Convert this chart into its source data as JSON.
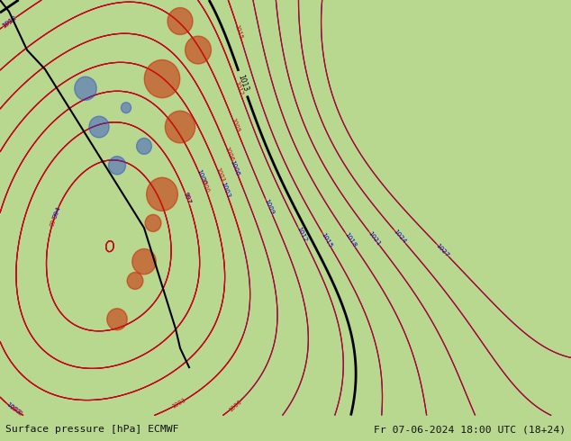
{
  "title_left": "Surface pressure [hPa] ECMWF",
  "title_right": "Fr 07-06-2024 18:00 UTC (18+24)",
  "bg_color": "#b8d890",
  "fig_width": 6.34,
  "fig_height": 4.9,
  "bottom_bar_color": "#d8d8d8",
  "bottom_bar_height": 0.058,
  "text_color": "#111111",
  "font_size_bottom": 8.2
}
